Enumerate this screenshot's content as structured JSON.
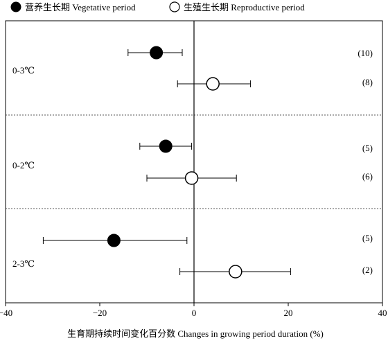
{
  "chart_data": {
    "type": "scatter",
    "xlabel": "生育期持续时间变化百分数 Changes in growing period duration (%)",
    "xlim": [
      -40,
      40
    ],
    "xticks": [
      -40,
      -20,
      0,
      20,
      40
    ],
    "legend": {
      "placement": "top-left",
      "entries": [
        {
          "label": "营养生长期 Vegetative period",
          "marker": "filled-circle"
        },
        {
          "label": "生殖生长期 Reproductive period",
          "marker": "open-circle"
        }
      ]
    },
    "groups": [
      {
        "label": "0-3℃",
        "points": [
          {
            "period": "vegetative",
            "mean": -8,
            "ci": [
              -14,
              -2.5
            ],
            "n_label": "(10)"
          },
          {
            "period": "reproductive",
            "mean": 4,
            "ci": [
              -3.5,
              12
            ],
            "n_label": "(8)"
          }
        ]
      },
      {
        "label": "0-2℃",
        "points": [
          {
            "period": "vegetative",
            "mean": -6,
            "ci": [
              -11.5,
              -0.5
            ],
            "n_label": "(5)"
          },
          {
            "period": "reproductive",
            "mean": -0.5,
            "ci": [
              -10,
              9
            ],
            "n_label": "(6)"
          }
        ]
      },
      {
        "label": "2-3℃",
        "points": [
          {
            "period": "vegetative",
            "mean": -17,
            "ci": [
              -32,
              -1.5
            ],
            "n_label": "(5)"
          },
          {
            "period": "reproductive",
            "mean": 8.8,
            "ci": [
              -3,
              20.5
            ],
            "n_label": "(2)"
          }
        ]
      }
    ],
    "colors": {
      "filled": "#000000",
      "open": "#ffffff",
      "axis": "#000000",
      "separator": "#555555"
    }
  }
}
